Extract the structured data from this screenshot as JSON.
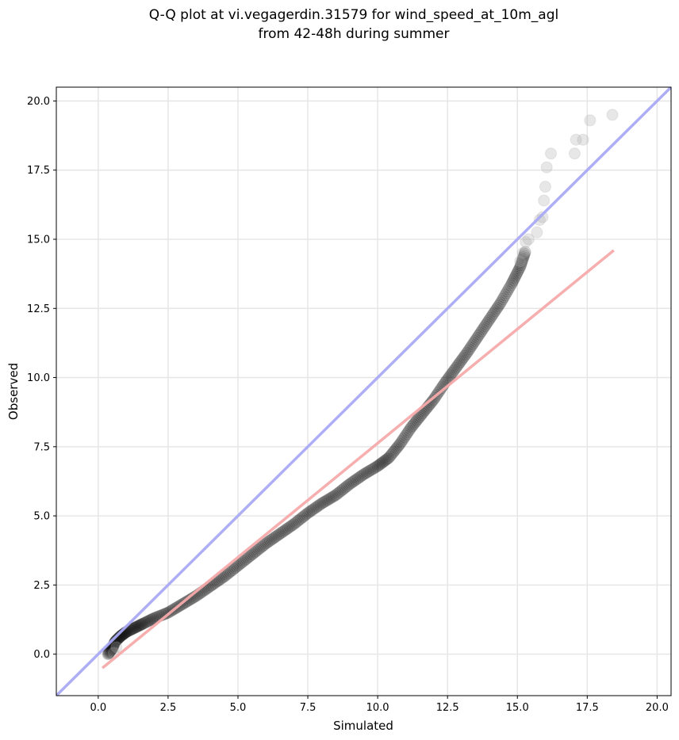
{
  "chart_data": {
    "type": "scatter",
    "title": [
      "Q-Q plot at vi.vegagerdin.31579 for wind_speed_at_10m_agl",
      "from 42-48h during summer"
    ],
    "xlabel": "Simulated",
    "ylabel": "Observed",
    "xlim": [
      -1.5,
      20.5
    ],
    "ylim": [
      -1.5,
      20.5
    ],
    "xticks": [
      0.0,
      2.5,
      5.0,
      7.5,
      10.0,
      12.5,
      15.0,
      17.5,
      20.0
    ],
    "yticks": [
      0.0,
      2.5,
      5.0,
      7.5,
      10.0,
      12.5,
      15.0,
      17.5,
      20.0
    ],
    "xtick_labels": [
      "0.0",
      "2.5",
      "5.0",
      "7.5",
      "10.0",
      "12.5",
      "15.0",
      "17.5",
      "20.0"
    ],
    "ytick_labels": [
      "0.0",
      "2.5",
      "5.0",
      "7.5",
      "10.0",
      "12.5",
      "15.0",
      "17.5",
      "20.0"
    ],
    "grid": true,
    "reference_lines": [
      {
        "kind": "identity",
        "color": "#aaaaf5",
        "points": [
          [
            -1.5,
            -1.5
          ],
          [
            20.5,
            20.5
          ]
        ]
      },
      {
        "kind": "fit",
        "color": "#f5aaaa",
        "points": [
          [
            0.15,
            -0.5
          ],
          [
            18.45,
            14.6
          ]
        ]
      }
    ],
    "quantile_curve": [
      [
        0.35,
        0.0
      ],
      [
        0.5,
        0.2
      ],
      [
        0.6,
        0.45
      ],
      [
        0.8,
        0.65
      ],
      [
        1.0,
        0.8
      ],
      [
        1.3,
        0.95
      ],
      [
        1.6,
        1.1
      ],
      [
        2.0,
        1.3
      ],
      [
        2.5,
        1.5
      ],
      [
        3.0,
        1.8
      ],
      [
        3.5,
        2.1
      ],
      [
        4.0,
        2.45
      ],
      [
        4.5,
        2.8
      ],
      [
        5.0,
        3.2
      ],
      [
        5.5,
        3.6
      ],
      [
        6.0,
        4.0
      ],
      [
        6.5,
        4.35
      ],
      [
        7.0,
        4.7
      ],
      [
        7.5,
        5.1
      ],
      [
        8.0,
        5.45
      ],
      [
        8.5,
        5.75
      ],
      [
        9.0,
        6.15
      ],
      [
        9.5,
        6.5
      ],
      [
        10.0,
        6.8
      ],
      [
        10.4,
        7.1
      ],
      [
        10.8,
        7.6
      ],
      [
        11.2,
        8.2
      ],
      [
        11.6,
        8.7
      ],
      [
        12.0,
        9.2
      ],
      [
        12.4,
        9.8
      ],
      [
        12.8,
        10.35
      ],
      [
        13.2,
        10.9
      ],
      [
        13.6,
        11.5
      ],
      [
        14.0,
        12.1
      ],
      [
        14.4,
        12.7
      ],
      [
        14.8,
        13.4
      ],
      [
        15.1,
        14.0
      ],
      [
        15.3,
        14.6
      ]
    ],
    "tail_points": [
      [
        0.55,
        0.05
      ],
      [
        0.65,
        0.25
      ],
      [
        15.1,
        14.2
      ],
      [
        15.2,
        14.5
      ],
      [
        15.3,
        14.9
      ],
      [
        15.4,
        15.0
      ],
      [
        15.7,
        15.25
      ],
      [
        15.8,
        15.7
      ],
      [
        15.9,
        15.8
      ],
      [
        15.95,
        16.4
      ],
      [
        16.0,
        16.9
      ],
      [
        16.05,
        17.6
      ],
      [
        16.2,
        18.1
      ],
      [
        17.05,
        18.1
      ],
      [
        17.1,
        18.6
      ],
      [
        17.35,
        18.6
      ],
      [
        17.6,
        19.3
      ],
      [
        18.4,
        19.5
      ]
    ]
  }
}
